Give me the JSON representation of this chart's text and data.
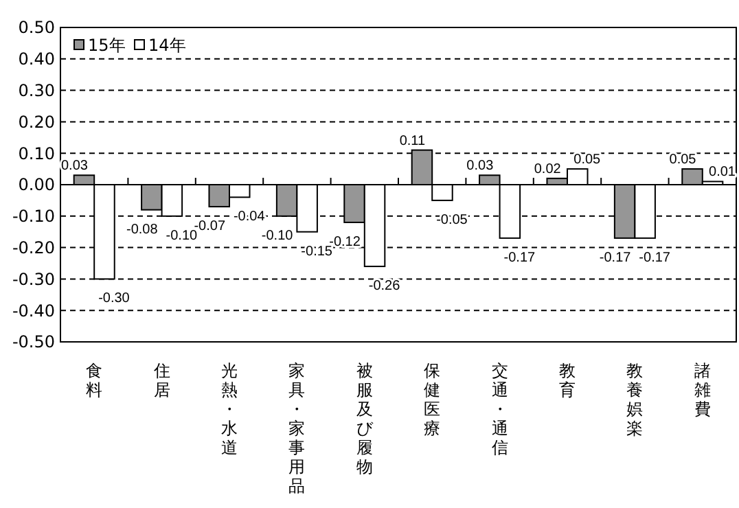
{
  "chart_data": {
    "type": "bar",
    "categories": [
      "食料",
      "住居",
      "光熱・水道",
      "家具・家事用品",
      "被服及び履物",
      "保健医療",
      "交通・通信",
      "教育",
      "教養娯楽",
      "諸雑費"
    ],
    "series": [
      {
        "name": "15年",
        "color": "#969696",
        "values": [
          0.03,
          -0.08,
          -0.07,
          -0.1,
          -0.12,
          0.11,
          0.03,
          0.02,
          -0.17,
          0.05
        ],
        "value_labels": [
          "0.03",
          "-0.08",
          "-0.07",
          "-0.10",
          "-0.12",
          "0.11",
          "0.03",
          "0.02",
          "-0.17",
          "0.05"
        ]
      },
      {
        "name": "14年",
        "color": "#ffffff",
        "values": [
          -0.3,
          -0.1,
          -0.04,
          -0.15,
          -0.26,
          -0.05,
          -0.17,
          0.05,
          -0.17,
          0.01
        ],
        "value_labels": [
          "-0.30",
          "-0.10",
          "-0.04",
          "-0.15",
          "-0.26",
          "-0.05",
          "-0.17",
          "0.05",
          "-0.17",
          "0.01"
        ]
      }
    ],
    "ylim": [
      -0.5,
      0.5
    ],
    "yticks": [
      {
        "value": 0.5,
        "label": "0.50"
      },
      {
        "value": 0.4,
        "label": "0.40"
      },
      {
        "value": 0.3,
        "label": "0.30"
      },
      {
        "value": 0.2,
        "label": "0.20"
      },
      {
        "value": 0.1,
        "label": "0.10"
      },
      {
        "value": 0,
        "label": "0.00"
      },
      {
        "value": -0.1,
        "label": "-0.10"
      },
      {
        "value": -0.2,
        "label": "-0.20"
      },
      {
        "value": -0.3,
        "label": "-0.30"
      },
      {
        "value": -0.4,
        "label": "-0.40"
      },
      {
        "value": -0.5,
        "label": "-0.50"
      }
    ],
    "grid": "y",
    "line_style": "dashed",
    "legend": "top left"
  }
}
